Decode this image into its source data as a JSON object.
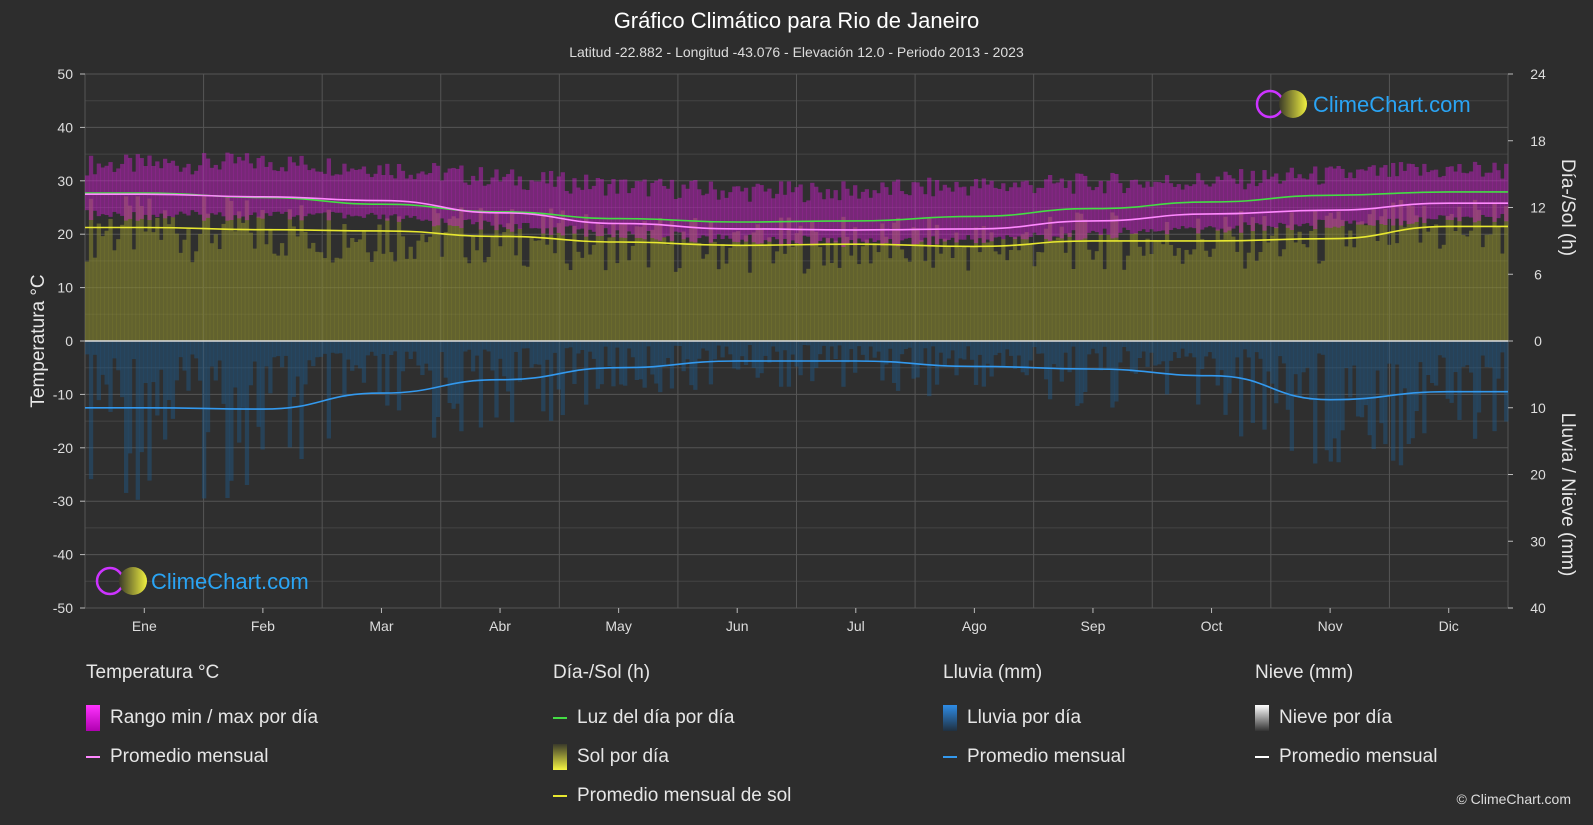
{
  "header": {
    "title": "Gráfico Climático para Rio de Janeiro",
    "subtitle": "Latitud -22.882 - Longitud -43.076 - Elevación 12.0 - Periodo 2013 - 2023"
  },
  "branding": {
    "logo_text": "ClimeChart.com",
    "copyright": "© ClimeChart.com"
  },
  "colors": {
    "background": "#2d2d2d",
    "daylight": "#44dd44",
    "sun_avg": "#e8e830",
    "temp_avg": "#ff88ff",
    "rain_avg": "#3399ee",
    "logo_text": "#2aa4f4"
  },
  "chart_data": {
    "type": "area",
    "categories": [
      "Ene",
      "Feb",
      "Mar",
      "Abr",
      "May",
      "Jun",
      "Jul",
      "Ago",
      "Sep",
      "Oct",
      "Nov",
      "Dic"
    ],
    "left_axis": {
      "label": "Temperatura °C",
      "range": [
        -50,
        50
      ],
      "ticks": [
        50,
        40,
        30,
        20,
        10,
        0,
        -10,
        -20,
        -30,
        -40,
        -50
      ]
    },
    "right_axis_top": {
      "label": "Día-/Sol (h)",
      "range": [
        0,
        24
      ],
      "ticks": [
        24,
        18,
        12,
        6,
        0
      ]
    },
    "right_axis_bottom": {
      "label": "Lluvia / Nieve (mm)",
      "range": [
        0,
        40
      ],
      "ticks": [
        0,
        10,
        20,
        30,
        40
      ]
    },
    "grid": true,
    "series": [
      {
        "name": "Rango min / max por día",
        "type": "band",
        "unit": "°C",
        "min": [
          24.5,
          24.5,
          24,
          22.5,
          21,
          20,
          19.5,
          20,
          21,
          22,
          23,
          24
        ],
        "max": [
          31,
          31.5,
          30.5,
          28.5,
          27,
          26,
          26,
          27,
          27.5,
          28,
          29,
          30
        ]
      },
      {
        "name": "Promedio mensual",
        "group": "temperature",
        "unit": "°C",
        "values": [
          27.5,
          27,
          26.3,
          24,
          22,
          21,
          20.8,
          21,
          22.5,
          23.8,
          24.5,
          25.8
        ]
      },
      {
        "name": "Luz del día por día",
        "unit": "h",
        "values": [
          13.3,
          12.9,
          12.3,
          11.6,
          11,
          10.7,
          10.8,
          11.2,
          11.9,
          12.5,
          13.1,
          13.4
        ]
      },
      {
        "name": "Sol por día",
        "type": "bar",
        "unit": "h",
        "values": [
          10.2,
          10,
          9.9,
          9.4,
          8.9,
          8.6,
          8.7,
          8.5,
          9.0,
          9.0,
          9.2,
          10.3
        ]
      },
      {
        "name": "Promedio mensual de sol",
        "unit": "h",
        "values": [
          10.2,
          10,
          9.9,
          9.4,
          8.9,
          8.6,
          8.7,
          8.5,
          9.0,
          9.0,
          9.2,
          10.3
        ]
      },
      {
        "name": "Lluvia por día",
        "type": "bar",
        "unit": "mm",
        "values": [
          10,
          10.2,
          7.8,
          5.8,
          4,
          3,
          3,
          3.8,
          4.2,
          5.2,
          8.8,
          7.6
        ]
      },
      {
        "name": "Promedio mensual",
        "group": "rain",
        "unit": "mm",
        "values": [
          10,
          10.2,
          7.8,
          5.8,
          4,
          3,
          3,
          3.8,
          4.2,
          5.2,
          8.8,
          7.6
        ]
      }
    ]
  },
  "legend": {
    "temperature": {
      "header": "Temperatura °C",
      "range": "Rango min / max por día",
      "avg": "Promedio mensual"
    },
    "sun": {
      "header": "Día-/Sol (h)",
      "daylight": "Luz del día por día",
      "sun": "Sol por día",
      "sun_avg": "Promedio mensual de sol"
    },
    "rain": {
      "header": "Lluvia (mm)",
      "rain": "Lluvia por día",
      "avg": "Promedio mensual"
    },
    "snow": {
      "header": "Nieve (mm)",
      "snow": "Nieve por día",
      "avg": "Promedio mensual"
    }
  }
}
